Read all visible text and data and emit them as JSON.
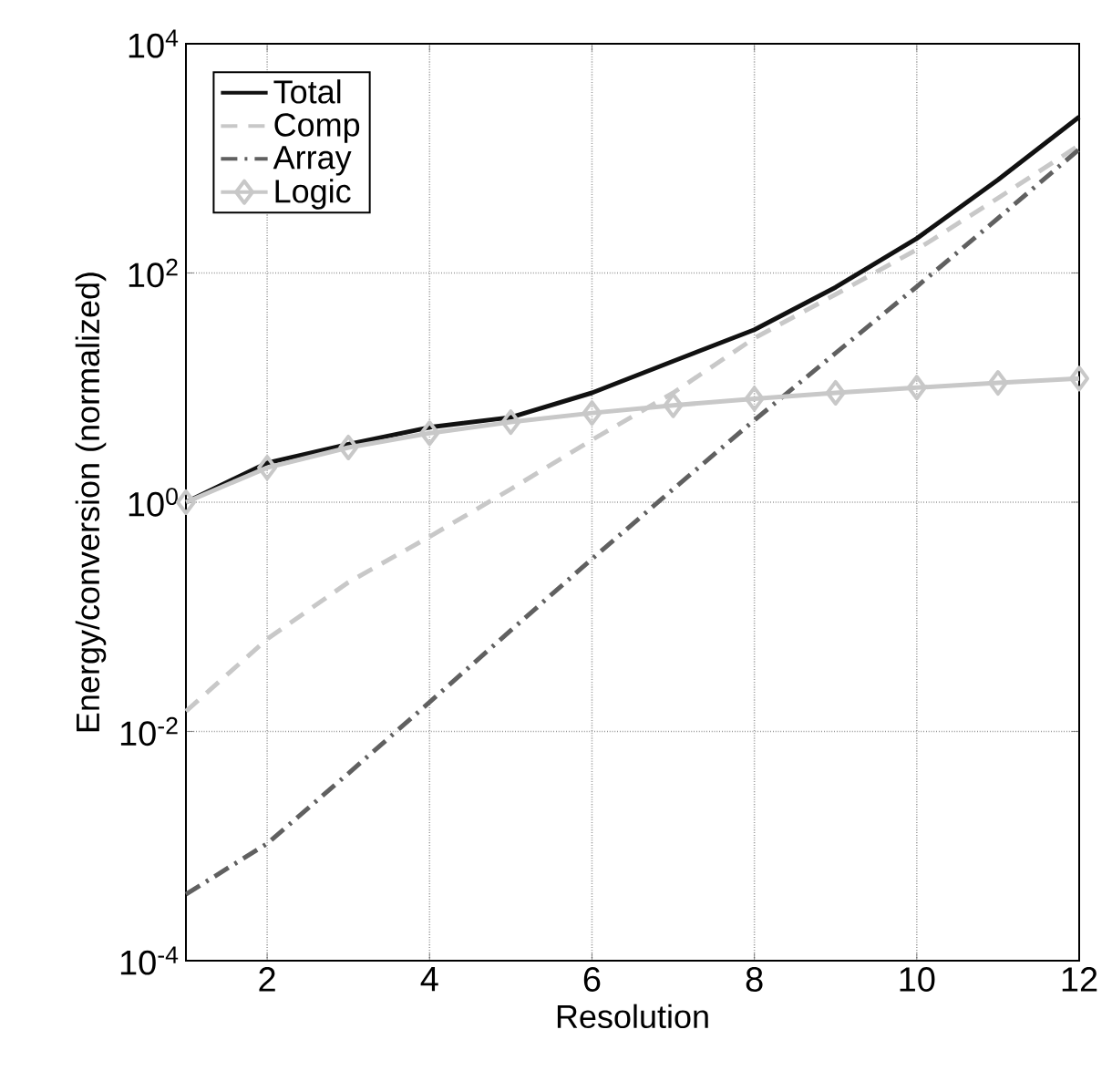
{
  "chart_data": {
    "type": "line",
    "xlabel": "Resolution",
    "ylabel": "Energy/conversion (normalized)",
    "x": [
      1,
      2,
      3,
      4,
      5,
      6,
      7,
      8,
      9,
      10,
      11,
      12
    ],
    "series": [
      {
        "name": "Total",
        "color": "#111111",
        "line_style": "solid",
        "marker": "none",
        "values": [
          1,
          2.2,
          3.2,
          4.5,
          5.5,
          9,
          17,
          32,
          75,
          200,
          650,
          2300
        ]
      },
      {
        "name": "Comp",
        "color": "#c8c8c8",
        "line_style": "dashed",
        "marker": "none",
        "values": [
          0.015,
          0.064,
          0.2,
          0.5,
          1.3,
          3.5,
          9,
          27,
          65,
          160,
          450,
          1300
        ]
      },
      {
        "name": "Array",
        "color": "#606060",
        "line_style": "dashdot",
        "marker": "none",
        "values": [
          0.00038,
          0.00105,
          0.0043,
          0.018,
          0.076,
          0.32,
          1.3,
          5.2,
          20,
          76,
          300,
          1200
        ]
      },
      {
        "name": "Logic",
        "color": "#c8c8c8",
        "line_style": "solid",
        "marker": "diamond",
        "values": [
          1,
          2,
          3,
          4,
          5,
          6,
          7,
          8,
          9,
          10,
          11,
          12
        ]
      }
    ],
    "log": "y",
    "grid": true,
    "legend": "top left",
    "xlim": [
      1,
      12
    ],
    "xticks": [
      2,
      4,
      6,
      8,
      10,
      12
    ],
    "ylim": [
      0.0001,
      10000
    ],
    "yticks": [
      {
        "value": 0.0001,
        "label": "10$^{-4}$"
      },
      {
        "value": 0.01,
        "label": "10$^{-2}$"
      },
      {
        "value": 1,
        "label": "10$^{0}$"
      },
      {
        "value": 100,
        "label": "10$^{2}$"
      },
      {
        "value": 10000,
        "label": "10$^{4}$"
      }
    ]
  }
}
